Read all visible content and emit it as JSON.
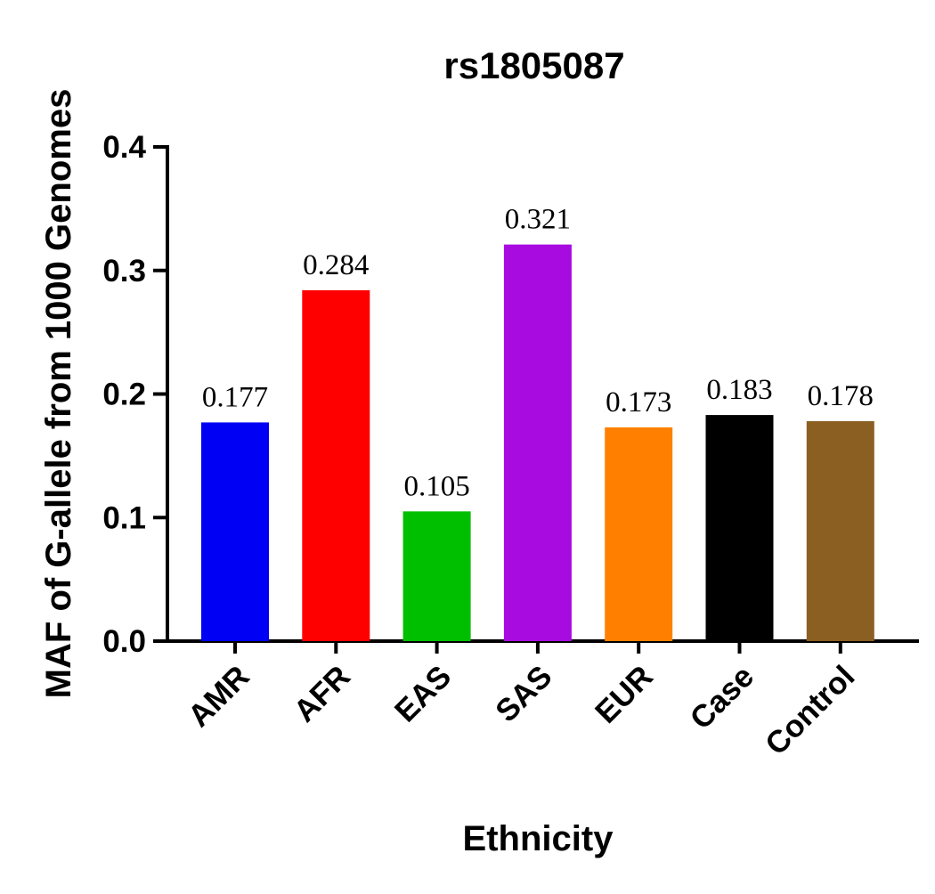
{
  "chart_data": {
    "type": "bar",
    "title": "rs1805087",
    "xlabel": "Ethnicity",
    "ylabel": "MAF of G-allele from 1000 Genomes",
    "ylim": [
      0,
      0.4
    ],
    "yticks": [
      "0.0",
      "0.1",
      "0.2",
      "0.3",
      "0.4"
    ],
    "categories": [
      "AMR",
      "AFR",
      "EAS",
      "SAS",
      "EUR",
      "Case",
      "Control"
    ],
    "values": [
      0.177,
      0.284,
      0.105,
      0.321,
      0.173,
      0.183,
      0.178
    ],
    "value_labels": [
      "0.177",
      "0.284",
      "0.105",
      "0.321",
      "0.173",
      "0.183",
      "0.178"
    ],
    "colors": [
      "#0000f5",
      "#ff0000",
      "#00bf00",
      "#a80be0",
      "#ff8000",
      "#000000",
      "#8b5e22"
    ],
    "grid": false,
    "legend": "none"
  }
}
